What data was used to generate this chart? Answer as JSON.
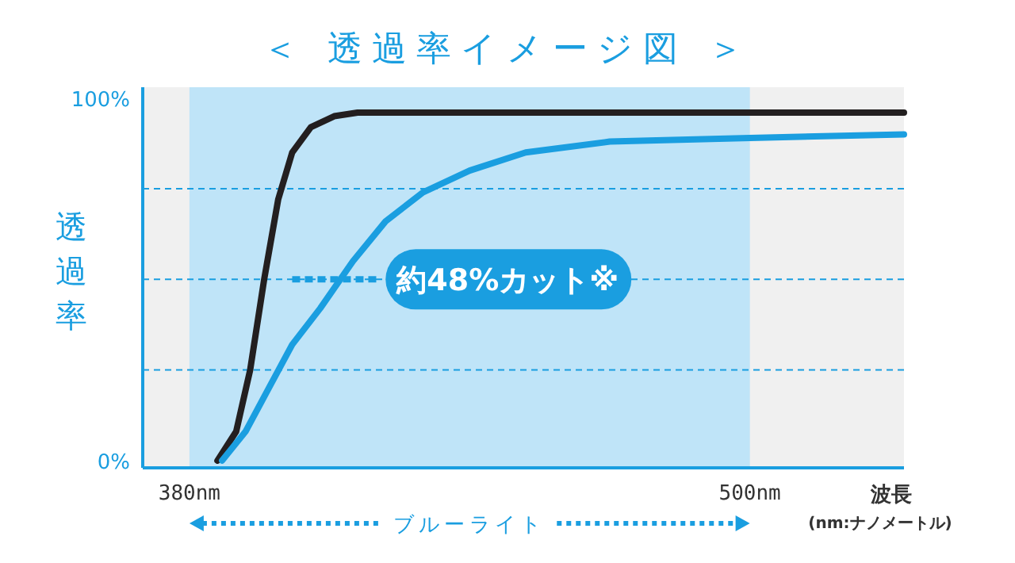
{
  "chart_data": {
    "type": "line",
    "title": "＜ 透過率イメージ図 ＞",
    "ylabel": "透過率",
    "xlabel": "波長",
    "annotations": [
      "(nm:ナノメートル)",
      "約48%カット※"
    ],
    "xlim": [
      370,
      533
    ],
    "ylim": [
      -2,
      103
    ],
    "xticks": [
      {
        "value": 380,
        "label": "380nm"
      },
      {
        "value": 500,
        "label": "500nm"
      }
    ],
    "yticks": [
      {
        "value": 0,
        "label": "0%"
      },
      {
        "value": 25,
        "label": null
      },
      {
        "value": 50,
        "label": null
      },
      {
        "value": 75,
        "label": null
      },
      {
        "value": 100,
        "label": "100%"
      }
    ],
    "grid": "y",
    "bands": [
      {
        "axis": "x",
        "from": 380,
        "to": 500,
        "label": "ブルーライト",
        "color": "#bfe4f8"
      }
    ],
    "series": [
      {
        "color": "#231f20",
        "x": [
          386,
          390,
          393,
          396,
          399,
          402,
          406,
          411,
          416,
          533
        ],
        "values": [
          0,
          8,
          25,
          50,
          72,
          85,
          92,
          95,
          96,
          96
        ]
      },
      {
        "color": "#1a9ee0",
        "x": [
          387,
          392,
          397,
          402,
          408,
          415,
          422,
          430,
          440,
          452,
          470,
          500,
          533
        ],
        "values": [
          0,
          8,
          20,
          32,
          42,
          55,
          66,
          74,
          80,
          85,
          88,
          89,
          90
        ]
      }
    ]
  }
}
